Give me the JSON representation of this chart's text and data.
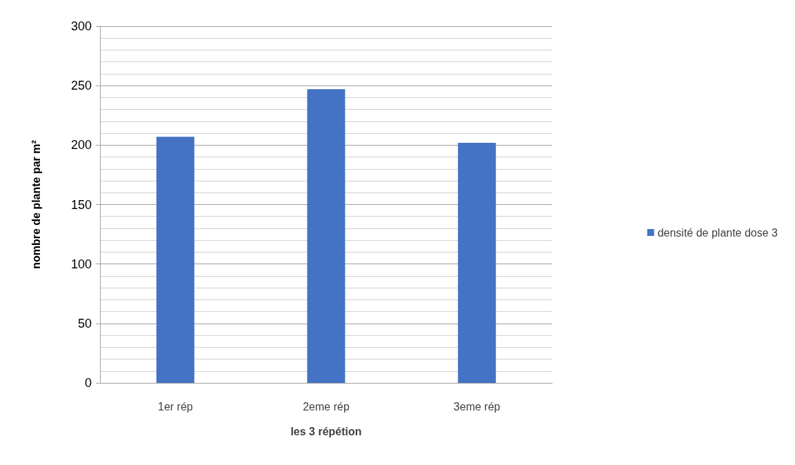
{
  "chart_data": {
    "type": "bar",
    "xlabel": "les 3 répétion",
    "ylabel": "nombre de plante par m²",
    "categories": [
      "1er rép",
      "2eme rép",
      "3eme rép"
    ],
    "series": [
      {
        "name": "densité de plante dose 3",
        "color": "#4472c4",
        "values": [
          207,
          247,
          202
        ]
      }
    ],
    "ylim": [
      0,
      300
    ],
    "yticks": [
      0,
      50,
      100,
      150,
      200,
      250,
      300
    ],
    "grid": "y",
    "legend": "right"
  }
}
